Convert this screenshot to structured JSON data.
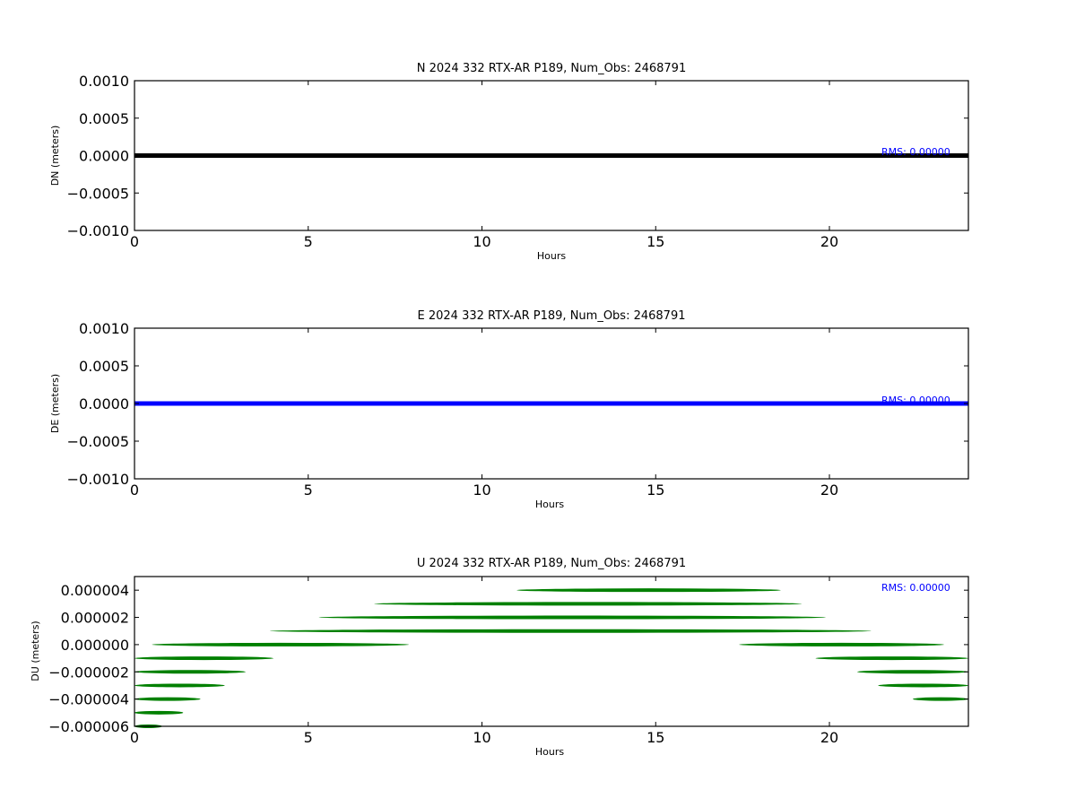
{
  "chart_data": [
    {
      "type": "scatter",
      "title": "N 2024 332 RTX-AR  P189, Num_Obs: 2468791",
      "xlabel": "Hours",
      "ylabel": "DN (meters)",
      "xlim": [
        0,
        24
      ],
      "ylim": [
        -0.001,
        0.001
      ],
      "x_ticks": [
        0,
        5,
        10,
        15,
        20
      ],
      "x_tick_labels": [
        "0",
        "5",
        "10",
        "15",
        "20"
      ],
      "y_ticks": [
        0.001,
        0.0005,
        0,
        -0.0005,
        -0.001
      ],
      "y_tick_labels": [
        "0.0010",
        "0.0005",
        "0.0000",
        "−0.0005",
        "−0.0010"
      ],
      "rms_label": "RMS:  0.00000",
      "color": "#000000",
      "series": [
        {
          "segments": [
            {
              "y": 0,
              "x_start": 0,
              "x_end": 24
            }
          ]
        }
      ]
    },
    {
      "type": "scatter",
      "title": "E 2024 332 RTX-AR  P189, Num_Obs: 2468791",
      "xlabel": "Hours",
      "ylabel": "DE (meters)",
      "xlim": [
        0,
        24
      ],
      "ylim": [
        -0.001,
        0.001
      ],
      "x_ticks": [
        0,
        5,
        10,
        15,
        20
      ],
      "x_tick_labels": [
        "0",
        "5",
        "10",
        "15",
        "20"
      ],
      "y_ticks": [
        0.001,
        0.0005,
        0,
        -0.0005,
        -0.001
      ],
      "y_tick_labels": [
        "0.0010",
        "0.0005",
        "0.0000",
        "−0.0005",
        "−0.0010"
      ],
      "rms_label": "RMS:  0.00000",
      "color": "#0000ff",
      "series": [
        {
          "segments": [
            {
              "y": 0,
              "x_start": 0,
              "x_end": 24
            }
          ]
        }
      ]
    },
    {
      "type": "scatter",
      "title": "U 2024 332 RTX-AR  P189, Num_Obs: 2468791",
      "xlabel": "Hours",
      "ylabel": "DU (meters)",
      "xlim": [
        0,
        24
      ],
      "ylim": [
        -6e-06,
        5e-06
      ],
      "x_ticks": [
        0,
        5,
        10,
        15,
        20
      ],
      "x_tick_labels": [
        "0",
        "5",
        "10",
        "15",
        "20"
      ],
      "y_ticks": [
        4e-06,
        2e-06,
        0,
        -2e-06,
        -4e-06,
        -6e-06
      ],
      "y_tick_labels": [
        "0.000004",
        "0.000002",
        "0.000000",
        "−0.000002",
        "−0.000004",
        "−0.000006"
      ],
      "rms_label": "RMS:  0.00000",
      "color": "#008000",
      "series": [
        {
          "segments": [
            {
              "y": 4e-06,
              "x_start": 11.0,
              "x_end": 18.6
            },
            {
              "y": 3e-06,
              "x_start": 6.9,
              "x_end": 19.2
            },
            {
              "y": 2e-06,
              "x_start": 5.3,
              "x_end": 19.9
            },
            {
              "y": 1e-06,
              "x_start": 3.9,
              "x_end": 21.2
            },
            {
              "y": 0,
              "x_start": 0.5,
              "x_end": 7.9
            },
            {
              "y": 0,
              "x_start": 17.4,
              "x_end": 23.3
            },
            {
              "y": -1e-06,
              "x_start": 0,
              "x_end": 4.0
            },
            {
              "y": -1e-06,
              "x_start": 19.6,
              "x_end": 24
            },
            {
              "y": -2e-06,
              "x_start": 0,
              "x_end": 3.2
            },
            {
              "y": -2e-06,
              "x_start": 20.8,
              "x_end": 24
            },
            {
              "y": -3e-06,
              "x_start": 0,
              "x_end": 2.6
            },
            {
              "y": -3e-06,
              "x_start": 21.4,
              "x_end": 24
            },
            {
              "y": -4e-06,
              "x_start": 0,
              "x_end": 1.9
            },
            {
              "y": -4e-06,
              "x_start": 22.4,
              "x_end": 24
            },
            {
              "y": -5e-06,
              "x_start": 0,
              "x_end": 1.4
            },
            {
              "y": -6e-06,
              "x_start": 0,
              "x_end": 0.8
            }
          ]
        }
      ]
    }
  ]
}
